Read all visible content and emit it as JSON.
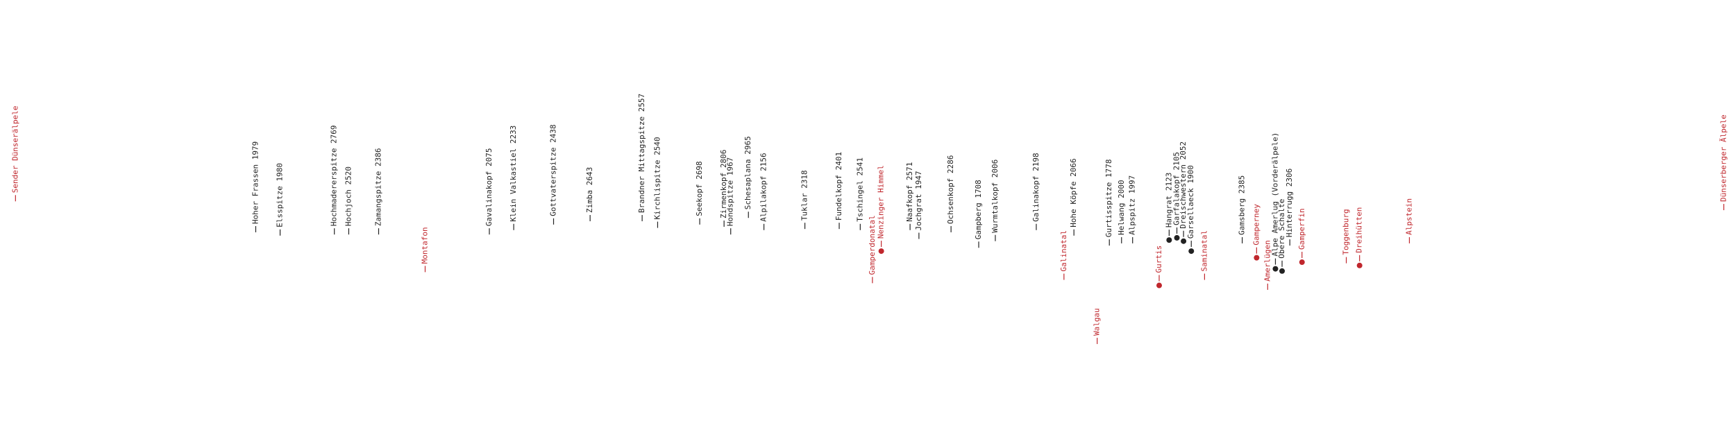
{
  "labels": [
    {
      "text": "Sender Dünserälpele",
      "color": "#c0272d",
      "dot": false
    },
    {
      "text": "Hoher Frassen 1979",
      "color": "#222222",
      "dot": false
    },
    {
      "text": "Elsspitze 1980",
      "color": "#222222",
      "dot": false
    },
    {
      "text": "Hochmaderer­spitze 2769",
      "color": "#222222",
      "dot": false
    },
    {
      "text": "Hochjoch 2520",
      "color": "#222222",
      "dot": false
    },
    {
      "text": "Zamangspitze 2386",
      "color": "#222222",
      "dot": false
    },
    {
      "text": "Montafon",
      "color": "#c0272d",
      "dot": false
    },
    {
      "text": "Gavalinakopf 2075",
      "color": "#222222",
      "dot": false
    },
    {
      "text": "Klein Valkastiel 2233",
      "color": "#222222",
      "dot": false
    },
    {
      "text": "Gottvaterspitze 2438",
      "color": "#222222",
      "dot": false
    },
    {
      "text": "Zimba 2643",
      "color": "#222222",
      "dot": false
    },
    {
      "text": "Brandner Mittagspitze 2557",
      "color": "#222222",
      "dot": false
    },
    {
      "text": "Kirchlispitze 2540",
      "color": "#222222",
      "dot": false
    },
    {
      "text": "Seekopf 2698",
      "color": "#222222",
      "dot": false
    },
    {
      "text": "Zirmenkopf 2806",
      "color": "#222222",
      "dot": false
    },
    {
      "text": "Hondspitze 1967",
      "color": "#222222",
      "dot": false
    },
    {
      "text": "Schesaplana 2965",
      "color": "#222222",
      "dot": false
    },
    {
      "text": "Alpilakopf 2156",
      "color": "#222222",
      "dot": false
    },
    {
      "text": "Tuklar 2318",
      "color": "#222222",
      "dot": false
    },
    {
      "text": "Fundelkopf 2401",
      "color": "#222222",
      "dot": false
    },
    {
      "text": "Tschingel 2541",
      "color": "#222222",
      "dot": false
    },
    {
      "text": "Gamperdonatal",
      "color": "#c0272d",
      "dot": false
    },
    {
      "text": "Nenzinger Himmel",
      "color": "#c0272d",
      "dot": true
    },
    {
      "text": "Naafkopf 2571",
      "color": "#222222",
      "dot": false
    },
    {
      "text": "Jochgrat 1947",
      "color": "#222222",
      "dot": false
    },
    {
      "text": "Ochsenkopf 2286",
      "color": "#222222",
      "dot": false
    },
    {
      "text": "Gampberg 1708",
      "color": "#222222",
      "dot": false
    },
    {
      "text": "Wurmtalkopf 2006",
      "color": "#222222",
      "dot": false
    },
    {
      "text": "Galinakopf 2198",
      "color": "#222222",
      "dot": false
    },
    {
      "text": "Galinatal",
      "color": "#c0272d",
      "dot": false
    },
    {
      "text": "Hohe Köpfe 2066",
      "color": "#222222",
      "dot": false
    },
    {
      "text": "Walgau",
      "color": "#c0272d",
      "dot": false
    },
    {
      "text": "Gurtisspitze 1778",
      "color": "#222222",
      "dot": false
    },
    {
      "text": "Helwang 2000",
      "color": "#222222",
      "dot": false
    },
    {
      "text": "Alpspitz 1997",
      "color": "#222222",
      "dot": false
    },
    {
      "text": "Gurtis",
      "color": "#c0272d",
      "dot": true
    },
    {
      "text": "Hangrat 2123",
      "color": "#222222",
      "dot": true
    },
    {
      "text": "Garfalakopf 2105",
      "color": "#222222",
      "dot": true
    },
    {
      "text": "Dreischwestern 2052",
      "color": "#222222",
      "dot": true
    },
    {
      "text": "Garsellaeck 1900",
      "color": "#222222",
      "dot": true
    },
    {
      "text": "Saminatal",
      "color": "#c0272d",
      "dot": false
    },
    {
      "text": "Gamsberg 2385",
      "color": "#222222",
      "dot": false
    },
    {
      "text": "Gamperney",
      "color": "#c0272d",
      "dot": true
    },
    {
      "text": "Amerlügen",
      "color": "#c0272d",
      "dot": false
    },
    {
      "text": "Alpe Amerlug (Vorderälpele)",
      "color": "#222222",
      "dot": true
    },
    {
      "text": "Obere Schalte",
      "color": "#222222",
      "dot": true
    },
    {
      "text": "Hinterrugg 2306",
      "color": "#222222",
      "dot": false
    },
    {
      "text": "Gamperfin",
      "color": "#c0272d",
      "dot": true
    },
    {
      "text": "Toggenburg",
      "color": "#c0272d",
      "dot": false
    },
    {
      "text": "Dreihütten",
      "color": "#c0272d",
      "dot": true
    },
    {
      "text": "Alpstein",
      "color": "#c0272d",
      "dot": false
    },
    {
      "text": "Dünserberger Älpele",
      "color": "#c0272d",
      "dot": false
    }
  ]
}
